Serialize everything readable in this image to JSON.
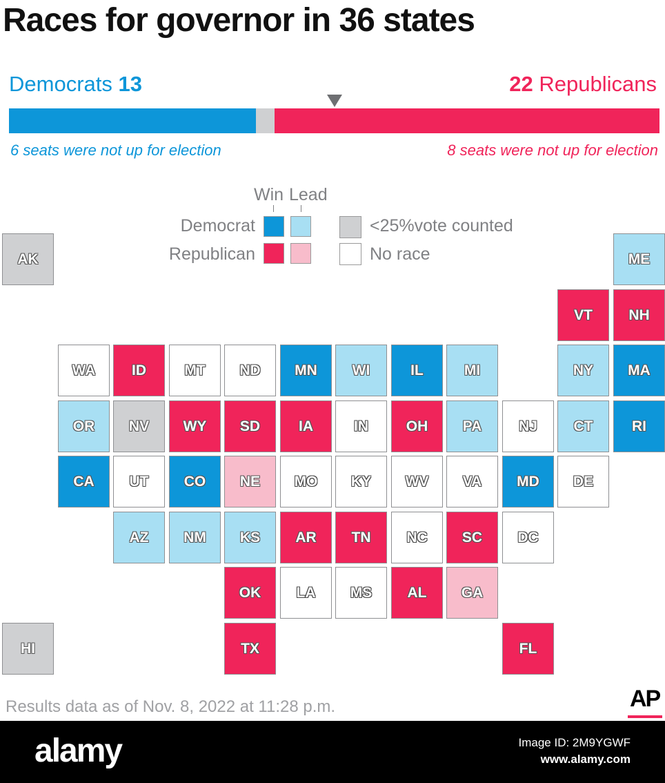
{
  "title": "Races for governor in 36 states",
  "summary": {
    "democrats_label": "Democrats",
    "democrats_count": "13",
    "republicans_label": "Republicans",
    "republicans_count": "22",
    "democrat_not_up": "6 seats were not up for election",
    "republican_not_up": "8 seats were not up for election",
    "bar_total_seats": 50,
    "bar_dem_seats": 13,
    "bar_rep_seats": 22,
    "bar_majority_marker_seat": 25
  },
  "legend": {
    "win_label": "Win",
    "lead_label": "Lead",
    "democrat_label": "Democrat",
    "republican_label": "Republican",
    "gray_label": "<25%vote counted",
    "none_label": "No race"
  },
  "colors": {
    "dem_win": "#0d96d9",
    "dem_lead": "#a8dff3",
    "rep_win": "#f0245a",
    "rep_lead": "#f8bccb",
    "under25": "#cfd0d2",
    "no_race": "#ffffff"
  },
  "states": [
    {
      "abbr": "AK",
      "status": "under25",
      "col": 0,
      "row": 0
    },
    {
      "abbr": "ME",
      "status": "dem_lead",
      "col": 11,
      "row": 0
    },
    {
      "abbr": "VT",
      "status": "rep_win",
      "col": 10,
      "row": 1
    },
    {
      "abbr": "NH",
      "status": "rep_win",
      "col": 11,
      "row": 1
    },
    {
      "abbr": "WA",
      "status": "no_race",
      "col": 1,
      "row": 2
    },
    {
      "abbr": "ID",
      "status": "rep_win",
      "col": 2,
      "row": 2
    },
    {
      "abbr": "MT",
      "status": "no_race",
      "col": 3,
      "row": 2
    },
    {
      "abbr": "ND",
      "status": "no_race",
      "col": 4,
      "row": 2
    },
    {
      "abbr": "MN",
      "status": "dem_win",
      "col": 5,
      "row": 2
    },
    {
      "abbr": "WI",
      "status": "dem_lead",
      "col": 6,
      "row": 2
    },
    {
      "abbr": "IL",
      "status": "dem_win",
      "col": 7,
      "row": 2
    },
    {
      "abbr": "MI",
      "status": "dem_lead",
      "col": 8,
      "row": 2
    },
    {
      "abbr": "NY",
      "status": "dem_lead",
      "col": 10,
      "row": 2
    },
    {
      "abbr": "MA",
      "status": "dem_win",
      "col": 11,
      "row": 2
    },
    {
      "abbr": "OR",
      "status": "dem_lead",
      "col": 1,
      "row": 3
    },
    {
      "abbr": "NV",
      "status": "under25",
      "col": 2,
      "row": 3
    },
    {
      "abbr": "WY",
      "status": "rep_win",
      "col": 3,
      "row": 3
    },
    {
      "abbr": "SD",
      "status": "rep_win",
      "col": 4,
      "row": 3
    },
    {
      "abbr": "IA",
      "status": "rep_win",
      "col": 5,
      "row": 3
    },
    {
      "abbr": "IN",
      "status": "no_race",
      "col": 6,
      "row": 3
    },
    {
      "abbr": "OH",
      "status": "rep_win",
      "col": 7,
      "row": 3
    },
    {
      "abbr": "PA",
      "status": "dem_lead",
      "col": 8,
      "row": 3
    },
    {
      "abbr": "NJ",
      "status": "no_race",
      "col": 9,
      "row": 3
    },
    {
      "abbr": "CT",
      "status": "dem_lead",
      "col": 10,
      "row": 3
    },
    {
      "abbr": "RI",
      "status": "dem_win",
      "col": 11,
      "row": 3
    },
    {
      "abbr": "CA",
      "status": "dem_win",
      "col": 1,
      "row": 4
    },
    {
      "abbr": "UT",
      "status": "no_race",
      "col": 2,
      "row": 4
    },
    {
      "abbr": "CO",
      "status": "dem_win",
      "col": 3,
      "row": 4
    },
    {
      "abbr": "NE",
      "status": "rep_lead",
      "col": 4,
      "row": 4
    },
    {
      "abbr": "MO",
      "status": "no_race",
      "col": 5,
      "row": 4
    },
    {
      "abbr": "KY",
      "status": "no_race",
      "col": 6,
      "row": 4
    },
    {
      "abbr": "WV",
      "status": "no_race",
      "col": 7,
      "row": 4
    },
    {
      "abbr": "VA",
      "status": "no_race",
      "col": 8,
      "row": 4
    },
    {
      "abbr": "MD",
      "status": "dem_win",
      "col": 9,
      "row": 4
    },
    {
      "abbr": "DE",
      "status": "no_race",
      "col": 10,
      "row": 4
    },
    {
      "abbr": "AZ",
      "status": "dem_lead",
      "col": 2,
      "row": 5
    },
    {
      "abbr": "NM",
      "status": "dem_lead",
      "col": 3,
      "row": 5
    },
    {
      "abbr": "KS",
      "status": "dem_lead",
      "col": 4,
      "row": 5
    },
    {
      "abbr": "AR",
      "status": "rep_win",
      "col": 5,
      "row": 5
    },
    {
      "abbr": "TN",
      "status": "rep_win",
      "col": 6,
      "row": 5
    },
    {
      "abbr": "NC",
      "status": "no_race",
      "col": 7,
      "row": 5
    },
    {
      "abbr": "SC",
      "status": "rep_win",
      "col": 8,
      "row": 5
    },
    {
      "abbr": "DC",
      "status": "no_race",
      "col": 9,
      "row": 5
    },
    {
      "abbr": "OK",
      "status": "rep_win",
      "col": 4,
      "row": 6
    },
    {
      "abbr": "LA",
      "status": "no_race",
      "col": 5,
      "row": 6
    },
    {
      "abbr": "MS",
      "status": "no_race",
      "col": 6,
      "row": 6
    },
    {
      "abbr": "AL",
      "status": "rep_win",
      "col": 7,
      "row": 6
    },
    {
      "abbr": "GA",
      "status": "rep_lead",
      "col": 8,
      "row": 6
    },
    {
      "abbr": "HI",
      "status": "under25",
      "col": 0,
      "row": 7
    },
    {
      "abbr": "TX",
      "status": "rep_win",
      "col": 4,
      "row": 7
    },
    {
      "abbr": "FL",
      "status": "rep_win",
      "col": 9,
      "row": 7
    }
  ],
  "footer": {
    "date_note": "Results data as of Nov. 8, 2022 at 11:28 p.m.",
    "logo": "AP"
  },
  "stock": {
    "brand": "alamy",
    "image_id": "Image ID: 2M9YGWF",
    "url": "www.alamy.com"
  }
}
